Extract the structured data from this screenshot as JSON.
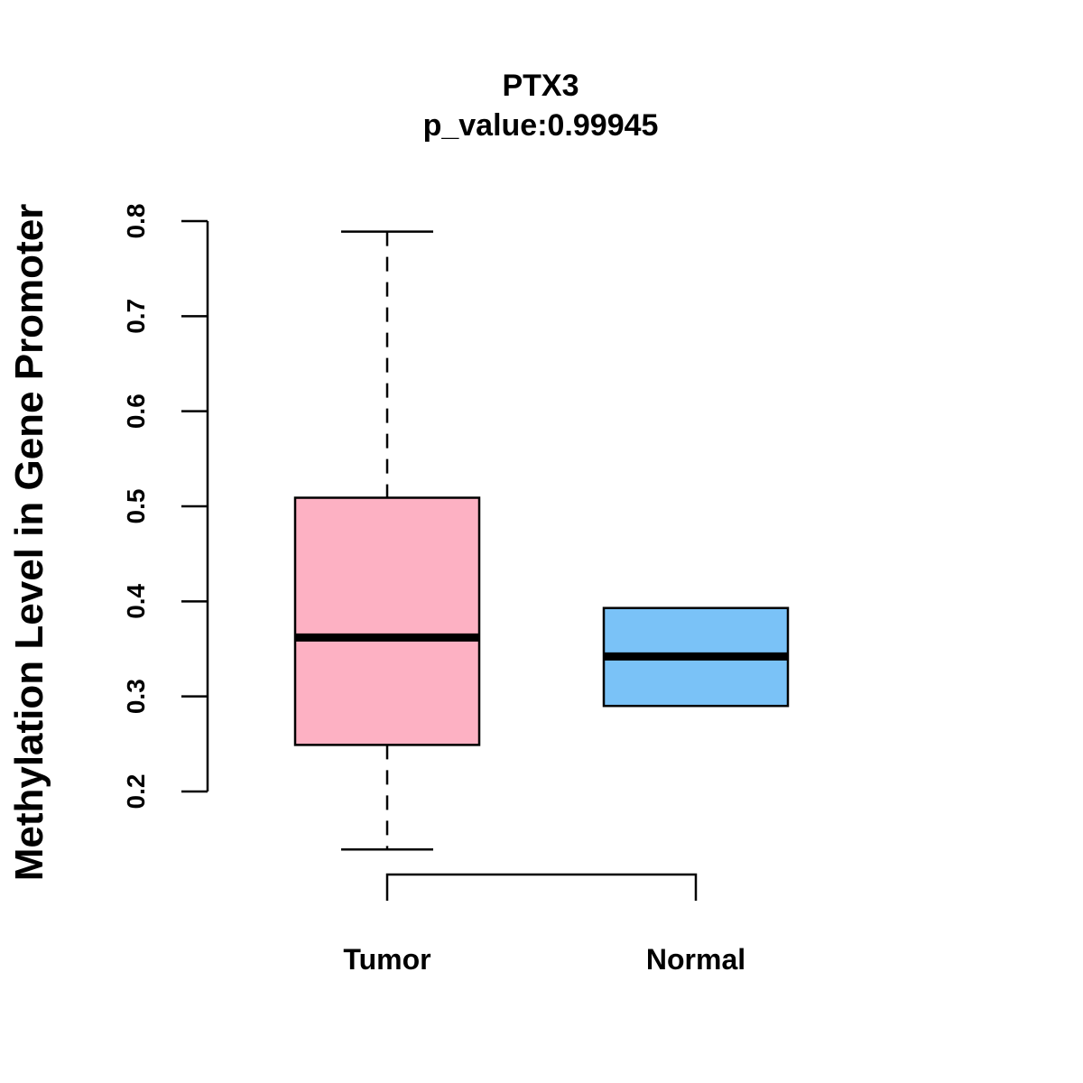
{
  "chart_data": {
    "type": "boxplot",
    "title": "PTX3",
    "subtitle": "p_value:0.99945",
    "xlabel": "",
    "ylabel": "Methylation Level in Gene Promoter",
    "ylim": [
      0.2,
      0.8
    ],
    "yticks": [
      0.2,
      0.3,
      0.4,
      0.5,
      0.6,
      0.7,
      0.8
    ],
    "ytick_labels": [
      "0.2",
      "0.3",
      "0.4",
      "0.5",
      "0.6",
      "0.7",
      "0.8"
    ],
    "categories": [
      "Tumor",
      "Normal"
    ],
    "series": [
      {
        "name": "Tumor",
        "min": 0.139,
        "q1": 0.249,
        "median": 0.362,
        "q3": 0.509,
        "max": 0.789,
        "color": "#FDB1C3"
      },
      {
        "name": "Normal",
        "min": 0.29,
        "q1": 0.29,
        "median": 0.342,
        "q3": 0.393,
        "max": 0.393,
        "color": "#7AC2F7"
      }
    ],
    "grid": false,
    "legend": "none"
  }
}
